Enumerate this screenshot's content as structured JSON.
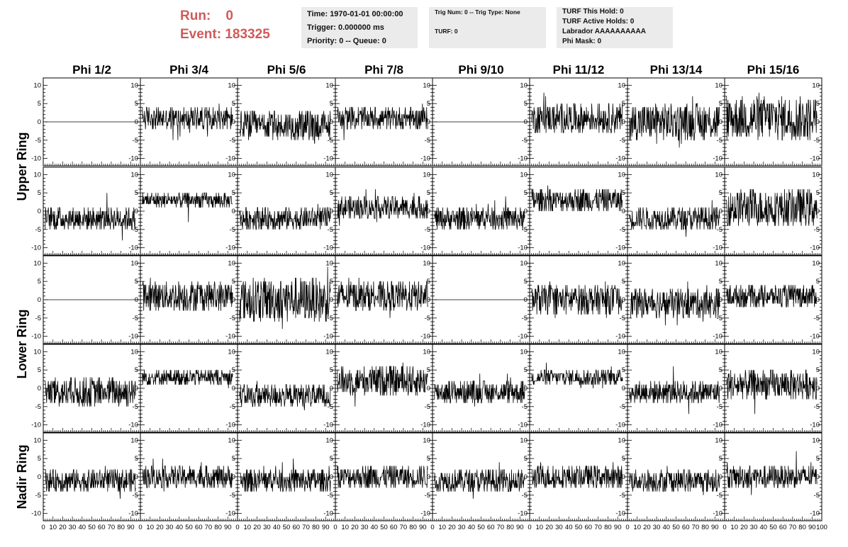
{
  "header": {
    "run_label": "Run:",
    "run_value": "0",
    "event_label": "Event:",
    "event_value": "183325",
    "time": "Time: 1970-01-01 00:00:00",
    "trigger": "Trigger: 0.000000 ms",
    "priority": "Priority: 0 -- Queue: 0",
    "trig_num": "Trig Num: 0 -- Trig Type: None",
    "turf": "TURF: 0",
    "turf_this_hold": "TURF This Hold: 0",
    "turf_active_holds": "TURF Active Holds: 0",
    "labrador": "Labrador AAAAAAAAAA",
    "phi_mask": "Phi Mask: 0"
  },
  "colors": {
    "header_text": "#d05a5a",
    "info_bg": "#ebebeb",
    "trace": "#000000"
  },
  "chart_data": {
    "type": "line",
    "columns": [
      "Phi 1/2",
      "Phi 3/4",
      "Phi 5/6",
      "Phi 7/8",
      "Phi 9/10",
      "Phi 11/12",
      "Phi 13/14",
      "Phi 15/16"
    ],
    "rows": [
      "Upper Ring",
      "Lower Ring",
      "Nadir Ring"
    ],
    "xlim": [
      0,
      100
    ],
    "ylim": [
      -12,
      12
    ],
    "x_ticks": [
      "0",
      "10",
      "20",
      "30",
      "40",
      "50",
      "60",
      "70",
      "80",
      "90",
      "100"
    ],
    "y_ticks_labeled": [
      "10",
      "5",
      "0",
      "-5",
      "-10"
    ],
    "panels": [
      {
        "row": "Upper Ring",
        "col": "Phi 1/2",
        "sub": 0,
        "offset": 0,
        "amp": 0,
        "flat": true
      },
      {
        "row": "Upper Ring",
        "col": "Phi 3/4",
        "sub": 0,
        "offset": 1,
        "amp": 3
      },
      {
        "row": "Upper Ring",
        "col": "Phi 5/6",
        "sub": 0,
        "offset": -1,
        "amp": 4
      },
      {
        "row": "Upper Ring",
        "col": "Phi 7/8",
        "sub": 0,
        "offset": 1,
        "amp": 3
      },
      {
        "row": "Upper Ring",
        "col": "Phi 9/10",
        "sub": 0,
        "offset": 0,
        "amp": 0,
        "flat": true
      },
      {
        "row": "Upper Ring",
        "col": "Phi 11/12",
        "sub": 0,
        "offset": 1,
        "amp": 4
      },
      {
        "row": "Upper Ring",
        "col": "Phi 13/14",
        "sub": 0,
        "offset": 0,
        "amp": 5
      },
      {
        "row": "Upper Ring",
        "col": "Phi 15/16",
        "sub": 0,
        "offset": 1,
        "amp": 6
      },
      {
        "row": "Upper Ring",
        "col": "Phi 1/2",
        "sub": 1,
        "offset": -2,
        "amp": 3
      },
      {
        "row": "Upper Ring",
        "col": "Phi 3/4",
        "sub": 1,
        "offset": 3,
        "amp": 2
      },
      {
        "row": "Upper Ring",
        "col": "Phi 5/6",
        "sub": 1,
        "offset": -2,
        "amp": 3
      },
      {
        "row": "Upper Ring",
        "col": "Phi 7/8",
        "sub": 1,
        "offset": 1,
        "amp": 3
      },
      {
        "row": "Upper Ring",
        "col": "Phi 9/10",
        "sub": 1,
        "offset": -2,
        "amp": 3
      },
      {
        "row": "Upper Ring",
        "col": "Phi 11/12",
        "sub": 1,
        "offset": 3,
        "amp": 3
      },
      {
        "row": "Upper Ring",
        "col": "Phi 13/14",
        "sub": 1,
        "offset": -2,
        "amp": 3
      },
      {
        "row": "Upper Ring",
        "col": "Phi 15/16",
        "sub": 1,
        "offset": 1,
        "amp": 5
      },
      {
        "row": "Lower Ring",
        "col": "Phi 1/2",
        "sub": 0,
        "offset": 0,
        "amp": 0,
        "flat": true
      },
      {
        "row": "Lower Ring",
        "col": "Phi 3/4",
        "sub": 0,
        "offset": 1,
        "amp": 4
      },
      {
        "row": "Lower Ring",
        "col": "Phi 5/6",
        "sub": 0,
        "offset": 0,
        "amp": 6
      },
      {
        "row": "Lower Ring",
        "col": "Phi 7/8",
        "sub": 0,
        "offset": 1,
        "amp": 4
      },
      {
        "row": "Lower Ring",
        "col": "Phi 9/10",
        "sub": 0,
        "offset": 0,
        "amp": 0,
        "flat": true
      },
      {
        "row": "Lower Ring",
        "col": "Phi 11/12",
        "sub": 0,
        "offset": 0,
        "amp": 4
      },
      {
        "row": "Lower Ring",
        "col": "Phi 13/14",
        "sub": 0,
        "offset": -1,
        "amp": 4
      },
      {
        "row": "Lower Ring",
        "col": "Phi 15/16",
        "sub": 0,
        "offset": 1,
        "amp": 3
      },
      {
        "row": "Lower Ring",
        "col": "Phi 1/2",
        "sub": 1,
        "offset": -1,
        "amp": 4
      },
      {
        "row": "Lower Ring",
        "col": "Phi 3/4",
        "sub": 1,
        "offset": 3,
        "amp": 2
      },
      {
        "row": "Lower Ring",
        "col": "Phi 5/6",
        "sub": 1,
        "offset": -2,
        "amp": 3
      },
      {
        "row": "Lower Ring",
        "col": "Phi 7/8",
        "sub": 1,
        "offset": 2,
        "amp": 4
      },
      {
        "row": "Lower Ring",
        "col": "Phi 9/10",
        "sub": 1,
        "offset": -1,
        "amp": 3
      },
      {
        "row": "Lower Ring",
        "col": "Phi 11/12",
        "sub": 1,
        "offset": 3,
        "amp": 2
      },
      {
        "row": "Lower Ring",
        "col": "Phi 13/14",
        "sub": 1,
        "offset": -1,
        "amp": 3
      },
      {
        "row": "Lower Ring",
        "col": "Phi 15/16",
        "sub": 1,
        "offset": 1,
        "amp": 4
      },
      {
        "row": "Nadir Ring",
        "col": "Phi 1/2",
        "sub": 0,
        "offset": -1,
        "amp": 3
      },
      {
        "row": "Nadir Ring",
        "col": "Phi 3/4",
        "sub": 0,
        "offset": 0,
        "amp": 3
      },
      {
        "row": "Nadir Ring",
        "col": "Phi 5/6",
        "sub": 0,
        "offset": -1,
        "amp": 3
      },
      {
        "row": "Nadir Ring",
        "col": "Phi 7/8",
        "sub": 0,
        "offset": 0,
        "amp": 3
      },
      {
        "row": "Nadir Ring",
        "col": "Phi 9/10",
        "sub": 0,
        "offset": -1,
        "amp": 3
      },
      {
        "row": "Nadir Ring",
        "col": "Phi 11/12",
        "sub": 0,
        "offset": 0,
        "amp": 3
      },
      {
        "row": "Nadir Ring",
        "col": "Phi 13/14",
        "sub": 0,
        "offset": -1,
        "amp": 3
      },
      {
        "row": "Nadir Ring",
        "col": "Phi 15/16",
        "sub": 0,
        "offset": 0,
        "amp": 3
      }
    ]
  }
}
